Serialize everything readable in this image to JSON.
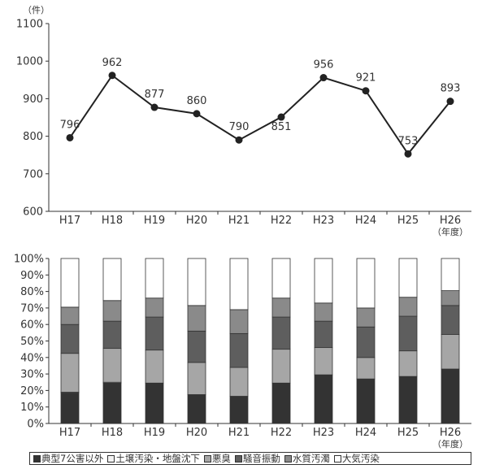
{
  "chart_data": [
    {
      "type": "line",
      "unit_label": "（件）",
      "categories": [
        "H17",
        "H18",
        "H19",
        "H20",
        "H21",
        "H22",
        "H23",
        "H24",
        "H25",
        "H26"
      ],
      "x_suffix": "（年度）",
      "values": [
        796,
        962,
        877,
        860,
        790,
        851,
        956,
        921,
        753,
        893
      ],
      "ylim": [
        600,
        1100
      ],
      "yticks": [
        "600",
        "700",
        "800",
        "900",
        "1000",
        "1100"
      ],
      "grid": false,
      "color": "#222222"
    },
    {
      "type": "bar",
      "stacked": true,
      "categories": [
        "H17",
        "H18",
        "H19",
        "H20",
        "H21",
        "H22",
        "H23",
        "H24",
        "H25",
        "H26"
      ],
      "x_suffix": "（年度）",
      "ylim": [
        0,
        100
      ],
      "yticks": [
        "0%",
        "10%",
        "20%",
        "30%",
        "40%",
        "50%",
        "60%",
        "70%",
        "80%",
        "90%",
        "100%"
      ],
      "legend_position": "bottom",
      "series": [
        {
          "name": "典型7公害以外",
          "color": "#333333",
          "values": [
            18.5,
            24.5,
            24.5,
            17.5,
            16.5,
            24.5,
            29.5,
            27,
            28.5,
            33
          ]
        },
        {
          "name": "土壌汚染・地盤沈下",
          "color": "#f2f2f2",
          "values": [
            0.5,
            0.5,
            0,
            0,
            0,
            0,
            0,
            0,
            0,
            0
          ]
        },
        {
          "name": "悪臭",
          "color": "#a6a6a6",
          "values": [
            23.5,
            20.5,
            20,
            19.5,
            17.5,
            20.5,
            16.5,
            13,
            15.5,
            21
          ]
        },
        {
          "name": "騒音振動",
          "color": "#5e5e5e",
          "values": [
            17.5,
            16.5,
            20,
            19,
            20.5,
            19.5,
            16,
            18.5,
            21,
            17.5
          ]
        },
        {
          "name": "水質汚濁",
          "color": "#8a8a8a",
          "values": [
            10.5,
            12.5,
            11.5,
            15.5,
            14.5,
            11.5,
            11,
            11.5,
            11.5,
            9
          ]
        },
        {
          "name": "大気汚染",
          "color": "#ffffff",
          "values": [
            29.5,
            25.5,
            24,
            28.5,
            31,
            24,
            27,
            30,
            23.5,
            19.5
          ]
        }
      ]
    }
  ]
}
